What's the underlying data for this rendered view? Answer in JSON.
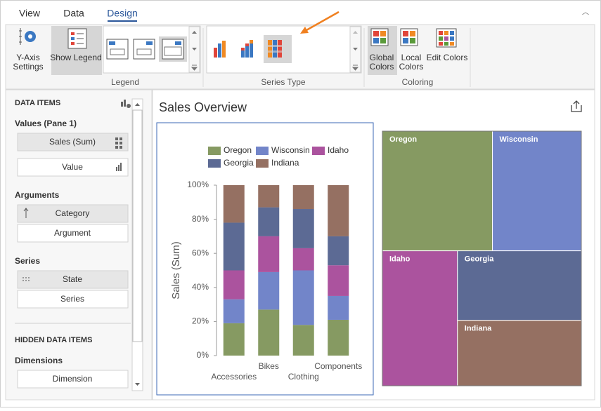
{
  "ribbon": {
    "tabs": [
      "View",
      "Data",
      "Design"
    ],
    "active_tab": 2,
    "y_axis_button": [
      "Y-Axis",
      "Settings"
    ],
    "show_legend_button": "Show Legend",
    "group_labels": [
      "Legend",
      "Series Type",
      "Coloring"
    ],
    "coloring_buttons": [
      [
        "Global",
        "Colors"
      ],
      [
        "Local",
        "Colors"
      ],
      [
        "Edit Colors"
      ]
    ]
  },
  "data_items_panel": {
    "title": "DATA ITEMS",
    "sections": [
      {
        "heading": "Values (Pane 1)",
        "fields": [
          "Sales (Sum)",
          "Value"
        ]
      },
      {
        "heading": "Arguments",
        "fields": [
          "Category",
          "Argument"
        ]
      },
      {
        "heading": "Series",
        "fields": [
          "State",
          "Series"
        ]
      }
    ],
    "hidden_title": "HIDDEN DATA ITEMS",
    "hidden_sections": [
      {
        "heading": "Dimensions",
        "fields": [
          "Dimension"
        ]
      }
    ]
  },
  "dashboard": {
    "title": "Sales Overview"
  },
  "chart_data": [
    {
      "type": "bar",
      "stacked": true,
      "y_label": "Sales (Sum)",
      "categories": [
        "Accessories",
        "Bikes",
        "Clothing",
        "Components"
      ],
      "series": [
        {
          "name": "Oregon",
          "color": "#869a62",
          "values": [
            19,
            27,
            18,
            21
          ]
        },
        {
          "name": "Wisconsin",
          "color": "#7285c9",
          "values": [
            14,
            22,
            32,
            14
          ]
        },
        {
          "name": "Idaho",
          "color": "#ab539e",
          "values": [
            17,
            21,
            13,
            18
          ]
        },
        {
          "name": "Georgia",
          "color": "#5c6a94",
          "values": [
            28,
            17,
            23,
            17
          ]
        },
        {
          "name": "Indiana",
          "color": "#957062",
          "values": [
            22,
            13,
            14,
            30
          ]
        }
      ],
      "ylim": [
        0,
        100
      ],
      "yticks": [
        {
          "value": 0,
          "label": "0%"
        },
        {
          "value": 20,
          "label": "20%"
        },
        {
          "value": 40,
          "label": "40%"
        },
        {
          "value": 60,
          "label": "60%"
        },
        {
          "value": 80,
          "label": "80%"
        },
        {
          "value": 100,
          "label": "100%"
        }
      ],
      "legend": "top"
    },
    {
      "type": "treemap",
      "categories": [
        "Oregon",
        "Wisconsin",
        "Idaho",
        "Georgia",
        "Indiana"
      ],
      "values": [
        26,
        21,
        20,
        17,
        16
      ],
      "colors": [
        "#869a62",
        "#7285c9",
        "#ab539e",
        "#5c6a94",
        "#957062"
      ]
    }
  ]
}
